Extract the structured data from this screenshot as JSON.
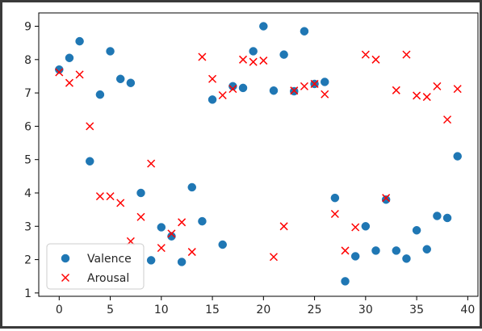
{
  "chart_data": {
    "type": "scatter",
    "title": "",
    "xlabel": "",
    "ylabel": "",
    "xlim": [
      -2,
      41
    ],
    "ylim": [
      0.9,
      9.4
    ],
    "xticks": [
      "0",
      "5",
      "10",
      "15",
      "20",
      "25",
      "30",
      "35",
      "40"
    ],
    "yticks": [
      "1",
      "2",
      "3",
      "4",
      "5",
      "6",
      "7",
      "8",
      "9"
    ],
    "grid": false,
    "legend_position": "lower-left",
    "series": [
      {
        "name": "Valence",
        "marker": "circle",
        "color": "#1f77b4",
        "x": [
          0,
          1,
          2,
          3,
          4,
          5,
          6,
          7,
          8,
          9,
          10,
          11,
          12,
          13,
          14,
          15,
          16,
          17,
          18,
          19,
          20,
          21,
          22,
          23,
          24,
          25,
          26,
          27,
          28,
          29,
          30,
          31,
          32,
          33,
          34,
          35,
          36,
          37,
          38,
          39
        ],
        "y": [
          7.7,
          8.05,
          8.55,
          4.95,
          6.95,
          8.25,
          7.42,
          7.3,
          4.0,
          1.98,
          2.97,
          2.7,
          1.93,
          4.17,
          3.15,
          6.8,
          2.45,
          7.2,
          7.15,
          8.25,
          9.0,
          7.07,
          8.15,
          7.05,
          8.85,
          7.27,
          7.33,
          3.85,
          1.35,
          2.1,
          3.0,
          2.27,
          3.8,
          2.27,
          2.03,
          2.88,
          2.31,
          3.31,
          3.25,
          5.1
        ]
      },
      {
        "name": "Arousal",
        "marker": "x",
        "color": "#ff0000",
        "x": [
          0,
          1,
          2,
          3,
          4,
          5,
          6,
          7,
          8,
          9,
          10,
          11,
          12,
          13,
          14,
          15,
          16,
          17,
          18,
          19,
          20,
          21,
          22,
          23,
          24,
          25,
          26,
          27,
          28,
          29,
          30,
          31,
          32,
          33,
          34,
          35,
          36,
          37,
          38,
          39
        ],
        "y": [
          7.62,
          7.3,
          7.55,
          6.0,
          3.9,
          3.9,
          3.7,
          2.55,
          3.28,
          4.88,
          2.35,
          2.78,
          3.12,
          2.23,
          8.08,
          7.42,
          6.93,
          7.12,
          8.0,
          7.93,
          7.97,
          2.08,
          3.0,
          7.07,
          7.2,
          7.27,
          6.96,
          3.37,
          2.27,
          2.97,
          8.15,
          8.0,
          3.85,
          7.08,
          8.15,
          6.92,
          6.88,
          7.2,
          6.2,
          7.12
        ]
      }
    ]
  }
}
